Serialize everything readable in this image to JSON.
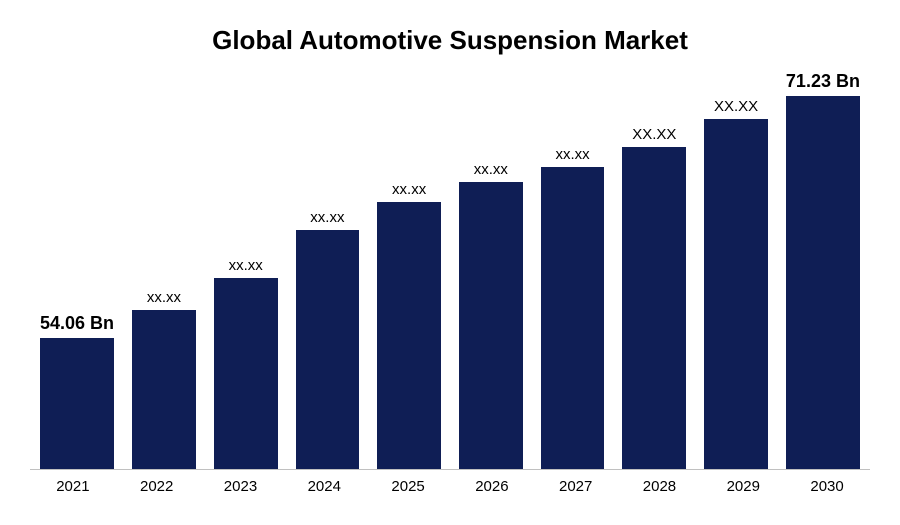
{
  "chart": {
    "type": "bar",
    "title": "Global Automotive Suspension Market",
    "title_fontsize": 26,
    "title_fontweight": "bold",
    "title_color": "#000000",
    "background_color": "#ffffff",
    "axis_line_color": "#c0c0c0",
    "bar_color": "#0f1e55",
    "bar_gap_ratio": 0.22,
    "label_font_normal": 15,
    "label_font_emph": 18,
    "xlabel_fontsize": 15,
    "xlabel_color": "#000000",
    "categories": [
      "2021",
      "2022",
      "2023",
      "2024",
      "2025",
      "2026",
      "2027",
      "2028",
      "2029",
      "2030"
    ],
    "values_rel": [
      33,
      40,
      48,
      60,
      67,
      72,
      76,
      81,
      88,
      95
    ],
    "ylim": [
      0,
      100
    ],
    "data_labels": [
      "54.06 Bn",
      "xx.xx",
      "xx.xx",
      "xx.xx",
      "xx.xx",
      "xx.xx",
      "xx.xx",
      "XX.XX",
      "XX.XX",
      "71.23 Bn"
    ],
    "emphasized_indices": [
      0,
      9
    ]
  }
}
